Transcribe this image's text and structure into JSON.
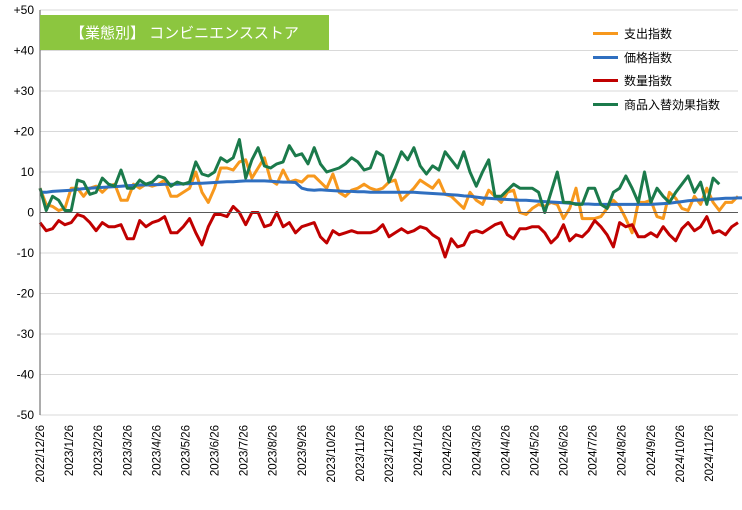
{
  "chart_data": {
    "type": "line",
    "title": "【業態別】 コンビニエンスストア",
    "ylim": [
      -50,
      50
    ],
    "yticks": [
      "+50",
      "+40",
      "+30",
      "+20",
      "10",
      "0",
      "-10",
      "-20",
      "-30",
      "-40",
      "-50"
    ],
    "xticks": [
      "2022/12/26",
      "2023/1/26",
      "2023/2/26",
      "2023/3/26",
      "2023/4/26",
      "2023/5/26",
      "2023/6/26",
      "2023/7/26",
      "2023/8/26",
      "2023/9/26",
      "2023/10/26",
      "2023/11/26",
      "2023/12/26",
      "2024/1/26",
      "2024/2/26",
      "2024/3/26",
      "2024/4/26",
      "2024/5/26",
      "2024/6/26",
      "2024/7/26",
      "2024/8/26",
      "2024/9/26",
      "2024/10/26",
      "2024/11/26"
    ],
    "series": [
      {
        "name": "支出指数",
        "color": "#f7981d",
        "values": [
          6,
          2,
          1.5,
          0.5,
          1,
          6,
          6,
          4,
          6,
          6.5,
          5,
          6.5,
          7,
          3,
          3,
          7,
          6,
          7,
          6.5,
          7,
          8,
          4,
          4,
          5,
          6,
          10,
          5,
          2.5,
          6,
          11,
          11,
          10.5,
          12.5,
          13,
          8.5,
          11,
          13.5,
          8,
          7,
          10.5,
          7.5,
          8,
          7.5,
          9,
          9,
          7.5,
          6,
          9.5,
          5,
          4,
          5.5,
          6,
          7,
          6,
          5.5,
          6,
          7.5,
          8,
          3,
          4.5,
          6,
          8,
          7,
          6,
          8,
          4.5,
          4,
          2.5,
          1,
          5,
          3,
          2,
          5.5,
          4,
          2.5,
          5,
          5.5,
          0,
          -0.5,
          1,
          2,
          1.5,
          2.5,
          2,
          -1.5,
          1,
          6,
          -1.5,
          -1.5,
          -1.5,
          -1,
          1,
          3,
          1.5,
          -1.5,
          -5,
          2.5,
          2.5,
          3,
          -1,
          -1.5,
          5,
          3.5,
          1,
          0.5,
          4,
          2,
          6,
          2.5,
          0.5,
          2.5,
          2.5,
          4
        ]
      },
      {
        "name": "価格指数",
        "color": "#2f6fc0",
        "values": [
          5,
          5,
          5.2,
          5.3,
          5.4,
          5.5,
          5.7,
          5.9,
          6,
          6.1,
          6.2,
          6.3,
          6.4,
          6.5,
          6.6,
          6.7,
          6.8,
          6.8,
          6.9,
          6.9,
          7,
          7,
          7,
          7.1,
          7.1,
          7.2,
          7.2,
          7.3,
          7.4,
          7.5,
          7.6,
          7.6,
          7.7,
          7.8,
          7.8,
          7.8,
          7.8,
          7.7,
          7.6,
          7.5,
          7.5,
          7.4,
          6,
          5.6,
          5.5,
          5.6,
          5.5,
          5.4,
          5.3,
          5.2,
          5.2,
          5.1,
          5.1,
          5,
          5,
          5,
          5,
          5,
          5,
          5,
          5,
          4.9,
          4.8,
          4.7,
          4.6,
          4.5,
          4.4,
          4.3,
          4.1,
          4,
          3.8,
          3.6,
          3.5,
          3.4,
          3.3,
          3.2,
          3.1,
          3,
          3,
          2.9,
          2.8,
          2.7,
          2.6,
          2.5,
          2.4,
          2.3,
          2.2,
          2.1,
          2.1,
          2,
          2,
          2,
          2,
          2,
          2,
          2,
          2,
          2,
          2,
          2.1,
          2.2,
          2.3,
          2.5,
          2.7,
          2.9,
          3,
          3.1,
          3.2,
          3.3,
          3.4,
          3.5,
          3.5,
          3.6,
          3.6,
          3.6,
          3.6,
          3.5
        ]
      },
      {
        "name": "数量指数",
        "color": "#c00000",
        "values": [
          -2.5,
          -4.5,
          -4,
          -2,
          -3,
          -2.5,
          -0.5,
          -1,
          -2.5,
          -4.5,
          -2.5,
          -3.5,
          -3.5,
          -3,
          -6.5,
          -6.5,
          -2,
          -3.5,
          -2.5,
          -2,
          -1,
          -5,
          -5,
          -3.5,
          -1.5,
          -5,
          -8,
          -3.5,
          -0.5,
          -0.5,
          -1,
          1.5,
          0,
          -3,
          0,
          0,
          -3.5,
          -3,
          0,
          -3.5,
          -2.5,
          -5,
          -3.5,
          -3,
          -2.5,
          -6,
          -7.5,
          -4.5,
          -5.5,
          -5,
          -4.5,
          -5,
          -5,
          -5,
          -4.5,
          -3,
          -6,
          -5,
          -4,
          -5,
          -4.5,
          -3.5,
          -4,
          -5.5,
          -6.5,
          -11,
          -6.5,
          -8.5,
          -8,
          -5,
          -4.5,
          -5,
          -4,
          -3,
          -2.5,
          -5.5,
          -6.5,
          -4,
          -4,
          -3.5,
          -3.5,
          -5,
          -7.5,
          -6,
          -3,
          -7,
          -5.5,
          -6,
          -4.5,
          -2,
          -3.5,
          -5.5,
          -8.5,
          -2.5,
          -3.5,
          -3,
          -6,
          -6,
          -5,
          -6,
          -3.5,
          -5.5,
          -7,
          -4,
          -2.5,
          -4.5,
          -3.5,
          -1,
          -5,
          -4.5,
          -5.5,
          -3.5,
          -2.5
        ]
      },
      {
        "name": "商品入替効果指数",
        "color": "#1b7a4b",
        "values": [
          6,
          0.5,
          4,
          3,
          0.5,
          0.5,
          8,
          7.5,
          4.5,
          5,
          8.5,
          7,
          6.5,
          10.5,
          6,
          6,
          8,
          7,
          7.5,
          9,
          8.5,
          6.5,
          7.5,
          7,
          7.5,
          12.5,
          9.5,
          9,
          10,
          13.5,
          12.5,
          13.5,
          18,
          8.5,
          13,
          16,
          11.5,
          11,
          12,
          12.5,
          16.5,
          14,
          14.5,
          12,
          16,
          12,
          10,
          10.5,
          11,
          12,
          13.5,
          12.5,
          10.5,
          11,
          15,
          14,
          7.5,
          11,
          15,
          13,
          16,
          11.5,
          9.5,
          11.5,
          10.5,
          15,
          13,
          11,
          15,
          10,
          6.5,
          10,
          13,
          4,
          4,
          5.5,
          7,
          6,
          6,
          6,
          5,
          0,
          5,
          10,
          2.5,
          2.5,
          2,
          2,
          6,
          6,
          2,
          1,
          5,
          6,
          9,
          6,
          2.5,
          10,
          2.5,
          6,
          4,
          2.5,
          5,
          7,
          9,
          5,
          7.5,
          2,
          8.5,
          7
        ]
      }
    ]
  }
}
